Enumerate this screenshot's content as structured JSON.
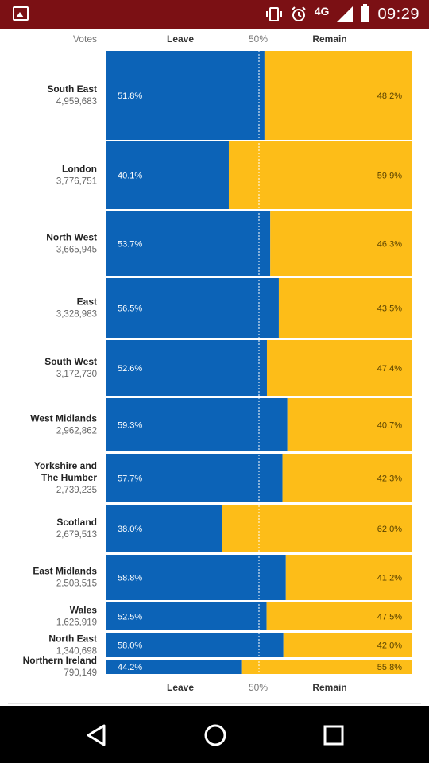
{
  "status_bar": {
    "network": "4G",
    "time": "09:29",
    "icons": [
      "image-icon",
      "vibrate-icon",
      "alarm-icon",
      "signal-icon",
      "battery-icon"
    ]
  },
  "nav_bar": {
    "icons": [
      "back-icon",
      "home-icon",
      "recents-icon"
    ]
  },
  "chart_data": {
    "type": "bar",
    "subtype": "stacked-horizontal-100",
    "header": {
      "votes": "Votes",
      "leave": "Leave",
      "midpoint": "50%",
      "remain": "Remain"
    },
    "footer": {
      "leave": "Leave",
      "midpoint": "50%",
      "remain": "Remain"
    },
    "series": [
      {
        "name": "Leave",
        "color": "#0c63b7"
      },
      {
        "name": "Remain",
        "color": "#fdbd18"
      }
    ],
    "xlim": [
      0,
      100
    ],
    "reference_line": 50,
    "categories": [
      {
        "region": [
          "South East"
        ],
        "votes": "4,959,683",
        "leave": 51.8,
        "remain": 48.2,
        "leave_label": "51.8%",
        "remain_label": "48.2%"
      },
      {
        "region": [
          "London"
        ],
        "votes": "3,776,751",
        "leave": 40.1,
        "remain": 59.9,
        "leave_label": "40.1%",
        "remain_label": "59.9%"
      },
      {
        "region": [
          "North West"
        ],
        "votes": "3,665,945",
        "leave": 53.7,
        "remain": 46.3,
        "leave_label": "53.7%",
        "remain_label": "46.3%"
      },
      {
        "region": [
          "East"
        ],
        "votes": "3,328,983",
        "leave": 56.5,
        "remain": 43.5,
        "leave_label": "56.5%",
        "remain_label": "43.5%"
      },
      {
        "region": [
          "South West"
        ],
        "votes": "3,172,730",
        "leave": 52.6,
        "remain": 47.4,
        "leave_label": "52.6%",
        "remain_label": "47.4%"
      },
      {
        "region": [
          "West Midlands"
        ],
        "votes": "2,962,862",
        "leave": 59.3,
        "remain": 40.7,
        "leave_label": "59.3%",
        "remain_label": "40.7%"
      },
      {
        "region": [
          "Yorkshire and",
          "The Humber"
        ],
        "votes": "2,739,235",
        "leave": 57.7,
        "remain": 42.3,
        "leave_label": "57.7%",
        "remain_label": "42.3%"
      },
      {
        "region": [
          "Scotland"
        ],
        "votes": "2,679,513",
        "leave": 38.0,
        "remain": 62.0,
        "leave_label": "38.0%",
        "remain_label": "62.0%"
      },
      {
        "region": [
          "East Midlands"
        ],
        "votes": "2,508,515",
        "leave": 58.8,
        "remain": 41.2,
        "leave_label": "58.8%",
        "remain_label": "41.2%"
      },
      {
        "region": [
          "Wales"
        ],
        "votes": "1,626,919",
        "leave": 52.5,
        "remain": 47.5,
        "leave_label": "52.5%",
        "remain_label": "47.5%"
      },
      {
        "region": [
          "North East"
        ],
        "votes": "1,340,698",
        "leave": 58.0,
        "remain": 42.0,
        "leave_label": "58.0%",
        "remain_label": "42.0%"
      },
      {
        "region": [
          "Northern Ireland"
        ],
        "votes": "790,149",
        "leave": 44.2,
        "remain": 55.8,
        "leave_label": "44.2%",
        "remain_label": "55.8%"
      }
    ]
  }
}
